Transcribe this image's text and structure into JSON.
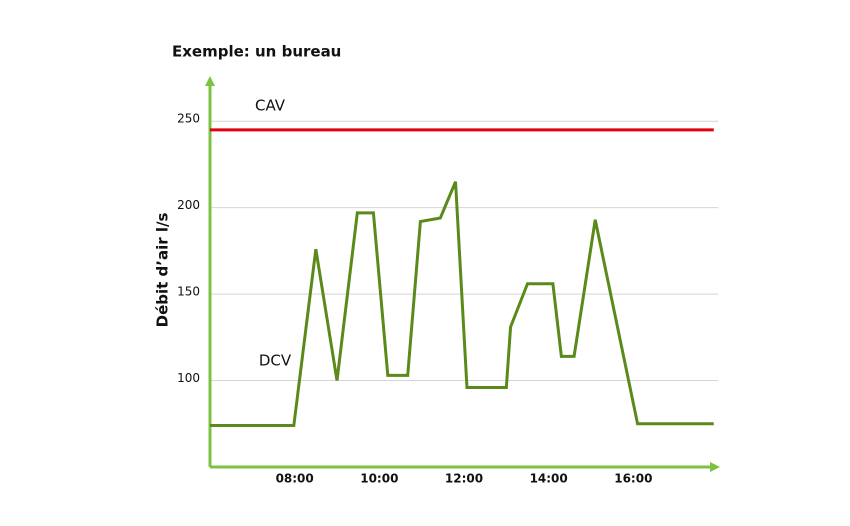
{
  "chart_data": {
    "type": "line",
    "title": "Exemple: un bureau",
    "y_label": "Débit d’air l/s",
    "series": [
      {
        "name": "CAV",
        "color": "#e3000f",
        "x": [
          6,
          17.9
        ],
        "values": [
          245,
          245
        ]
      },
      {
        "name": "DCV",
        "color": "#5a8a1a",
        "x": [
          6.0,
          7.98,
          8.5,
          9.0,
          9.48,
          9.86,
          10.2,
          10.67,
          10.97,
          11.44,
          11.8,
          12.07,
          13.0,
          13.1,
          13.5,
          14.1,
          14.3,
          14.6,
          15.1,
          16.1,
          17.9
        ],
        "values": [
          74,
          74,
          176,
          100,
          197,
          197,
          103,
          103,
          192,
          194,
          215,
          96,
          96,
          131,
          156,
          156,
          114,
          114,
          193,
          75,
          75
        ]
      }
    ],
    "xlim": [
      6,
      18
    ],
    "xticks": [
      {
        "value": 8,
        "label": "08:00"
      },
      {
        "value": 10,
        "label": "10:00"
      },
      {
        "value": 12,
        "label": "12:00"
      },
      {
        "value": 14,
        "label": "14:00"
      },
      {
        "value": 16,
        "label": "16:00"
      }
    ],
    "ylim": [
      50,
      275
    ],
    "yticks": [
      100,
      150,
      200,
      250
    ],
    "grid": true,
    "axis_color": "#7dc241"
  }
}
